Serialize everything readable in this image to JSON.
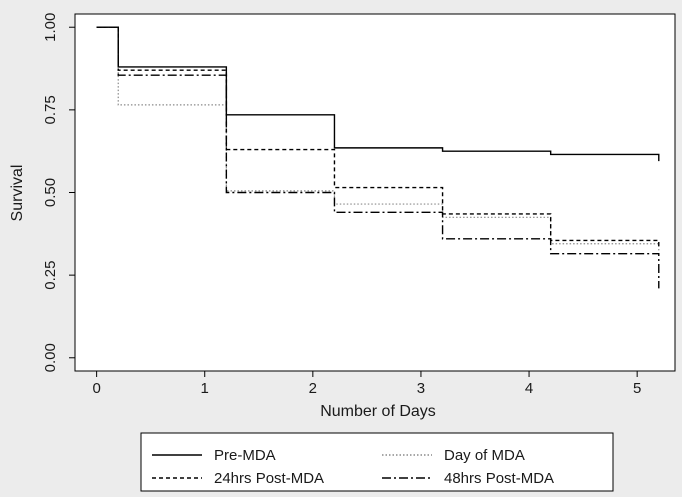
{
  "chart_data": {
    "type": "line",
    "step": true,
    "xlabel": "Number of Days",
    "ylabel": "Survival",
    "xlim": [
      -0.2,
      5.35
    ],
    "ylim": [
      -0.04,
      1.04
    ],
    "x_ticks": [
      0,
      1,
      2,
      3,
      4,
      5
    ],
    "x_tick_labels": [
      "0",
      "1",
      "2",
      "3",
      "4",
      "5"
    ],
    "y_ticks": [
      0,
      0.25,
      0.5,
      0.75,
      1.0
    ],
    "y_tick_labels": [
      "0.00",
      "0.25",
      "0.50",
      "0.75",
      "1.00"
    ],
    "grid": false,
    "legend_position": "bottom",
    "series": [
      {
        "name": "Pre-MDA",
        "dash": "solid",
        "color": "#000000",
        "x": [
          0,
          0.2,
          1.2,
          2.2,
          3.2,
          4.2,
          5.2
        ],
        "y": [
          1.0,
          0.88,
          0.735,
          0.635,
          0.625,
          0.615,
          0.595
        ]
      },
      {
        "name": "Day of MDA",
        "dash": "dotted",
        "color": "#8a8a8a",
        "x": [
          0,
          0.2,
          1.2,
          2.2,
          3.2,
          4.2,
          5.2
        ],
        "y": [
          1.0,
          0.765,
          0.505,
          0.465,
          0.425,
          0.345,
          0.325
        ]
      },
      {
        "name": "24hrs Post-MDA",
        "dash": "dashed",
        "color": "#000000",
        "x": [
          0,
          0.2,
          1.2,
          2.2,
          3.2,
          4.2,
          5.2
        ],
        "y": [
          1.0,
          0.87,
          0.63,
          0.515,
          0.435,
          0.355,
          0.33
        ]
      },
      {
        "name": "48hrs Post-MDA",
        "dash": "dashdot",
        "color": "#000000",
        "x": [
          0,
          0.2,
          1.2,
          2.2,
          3.2,
          4.2,
          5.2
        ],
        "y": [
          1.0,
          0.855,
          0.5,
          0.44,
          0.36,
          0.315,
          0.21
        ]
      }
    ]
  }
}
